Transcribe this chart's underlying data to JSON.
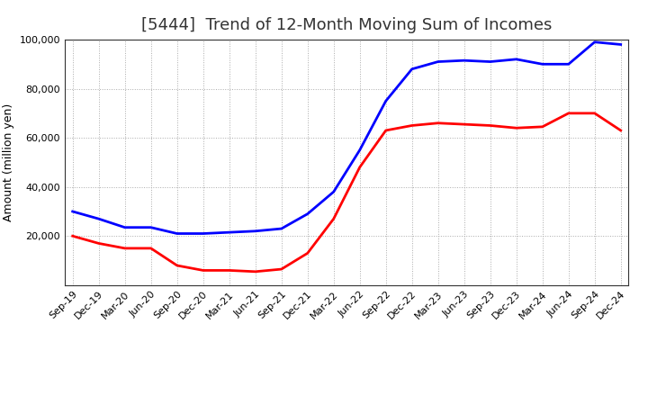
{
  "title": "[5444]  Trend of 12-Month Moving Sum of Incomes",
  "ylabel": "Amount (million yen)",
  "ylim": [
    0,
    100000
  ],
  "yticks": [
    0,
    20000,
    40000,
    60000,
    80000,
    100000
  ],
  "x_labels": [
    "Sep-19",
    "Dec-19",
    "Mar-20",
    "Jun-20",
    "Sep-20",
    "Dec-20",
    "Mar-21",
    "Jun-21",
    "Sep-21",
    "Dec-21",
    "Mar-22",
    "Jun-22",
    "Sep-22",
    "Dec-22",
    "Mar-23",
    "Jun-23",
    "Sep-23",
    "Dec-23",
    "Mar-24",
    "Jun-24",
    "Sep-24",
    "Dec-24"
  ],
  "ordinary_income": [
    30000,
    27000,
    23500,
    23500,
    21000,
    21000,
    21500,
    22000,
    23000,
    29000,
    38000,
    55000,
    75000,
    88000,
    91000,
    91500,
    91000,
    92000,
    90000,
    90000,
    99000,
    98000
  ],
  "net_income": [
    20000,
    17000,
    15000,
    15000,
    8000,
    6000,
    6000,
    5500,
    6500,
    13000,
    27000,
    48000,
    63000,
    65000,
    66000,
    65500,
    65000,
    64000,
    64500,
    70000,
    70000,
    63000
  ],
  "ordinary_color": "#0000FF",
  "net_color": "#FF0000",
  "line_width": 2.0,
  "background_color": "#FFFFFF",
  "grid_color": "#AAAAAA",
  "title_fontsize": 13,
  "ylabel_fontsize": 9,
  "tick_fontsize": 8,
  "legend_fontsize": 9
}
